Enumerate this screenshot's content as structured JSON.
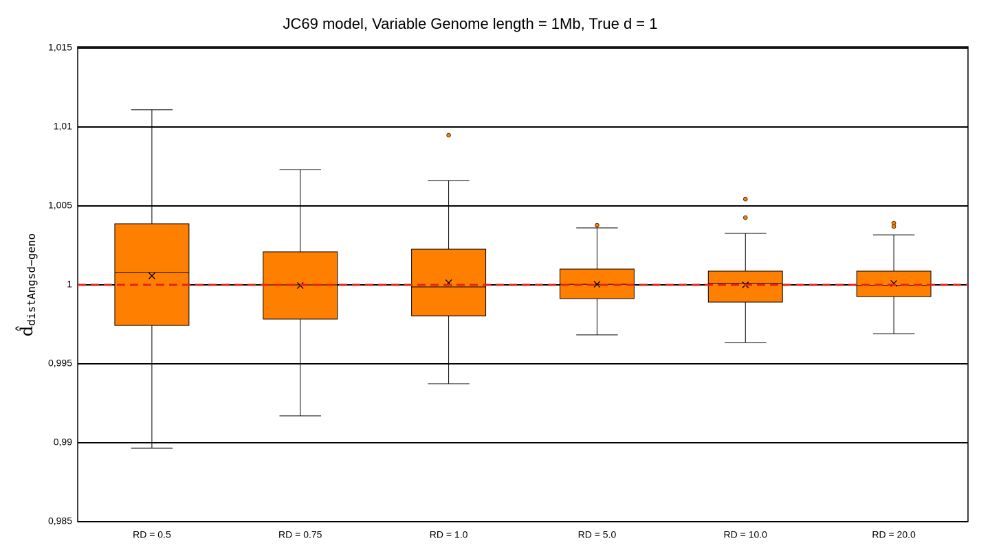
{
  "chart_data": {
    "type": "box",
    "title": "JC69 model, Variable Genome length = 1Mb, True d = 1",
    "y_label": {
      "symbol": "d̂",
      "subscript": "distAngsd−geno"
    },
    "categories": [
      "RD = 0.5",
      "RD = 0.75",
      "RD = 1.0",
      "RD = 5.0",
      "RD = 10.0",
      "RD = 20.0"
    ],
    "boxes": [
      {
        "min": 0.98965,
        "q1": 0.99743,
        "median": 1.00078,
        "q3": 1.00387,
        "max": 1.01109,
        "mean": 1.00057,
        "outliers": []
      },
      {
        "min": 0.9917,
        "q1": 0.99783,
        "median": 1.0,
        "q3": 1.00209,
        "max": 1.0073,
        "mean": 0.99996,
        "outliers": []
      },
      {
        "min": 0.99374,
        "q1": 0.99804,
        "median": 0.99987,
        "q3": 1.00226,
        "max": 1.00661,
        "mean": 1.00013,
        "outliers": [
          1.00948
        ]
      },
      {
        "min": 0.99683,
        "q1": 0.99913,
        "median": 1.00004,
        "q3": 1.001,
        "max": 1.00361,
        "mean": 1.00004,
        "outliers": [
          1.00378
        ]
      },
      {
        "min": 0.99635,
        "q1": 0.99891,
        "median": 1.00009,
        "q3": 1.00087,
        "max": 1.00326,
        "mean": 1.0,
        "outliers": [
          1.00543,
          1.00426
        ]
      },
      {
        "min": 0.99691,
        "q1": 0.99926,
        "median": 0.99996,
        "q3": 1.00087,
        "max": 1.00317,
        "mean": 1.00009,
        "outliers": [
          1.00391,
          1.0037
        ]
      }
    ],
    "color": "#ff8000",
    "reference_line": {
      "value": 1,
      "color": "#e8221b"
    },
    "ylim": [
      0.985,
      1.015
    ],
    "yticks": [
      {
        "value": 0.985,
        "label": "0,985"
      },
      {
        "value": 0.99,
        "label": "0,99"
      },
      {
        "value": 0.995,
        "label": "0,995"
      },
      1,
      {
        "value": 1.005,
        "label": "1,005"
      },
      {
        "value": 1.01,
        "label": "1,01"
      },
      {
        "value": 1.015,
        "label": "1,015"
      }
    ],
    "grid": true
  }
}
